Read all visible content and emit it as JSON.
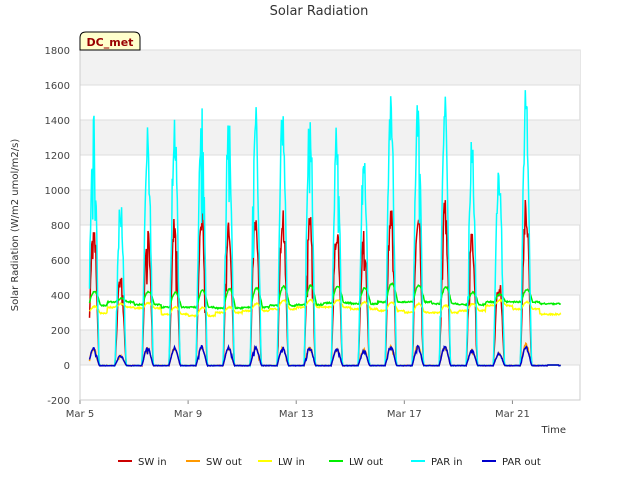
{
  "chart_data": {
    "type": "line",
    "title": "Solar Radiation",
    "xlabel": "Time",
    "ylabel": "Solar Radiation (W/m2 umol/m2/s)",
    "ylim": [
      -200,
      1800
    ],
    "yticks": [
      -200,
      0,
      200,
      400,
      600,
      800,
      1000,
      1200,
      1400,
      1600,
      1800
    ],
    "xlim_days": [
      5,
      23.5
    ],
    "xticks": [
      {
        "day": 5,
        "label": "Mar 5"
      },
      {
        "day": 9,
        "label": "Mar 9"
      },
      {
        "day": 13,
        "label": "Mar 13"
      },
      {
        "day": 17,
        "label": "Mar 17"
      },
      {
        "day": 21,
        "label": "Mar 21"
      }
    ],
    "badge": "DC_met",
    "grid": true,
    "legend_position": "bottom",
    "days": [
      5.5,
      6.5,
      7.5,
      8.5,
      9.5,
      10.5,
      11.5,
      12.5,
      13.5,
      14.5,
      15.5,
      16.5,
      17.5,
      18.5,
      19.5,
      20.5,
      21.5,
      22.5
    ],
    "series": [
      {
        "name": "SW in",
        "color": "#cc0000",
        "kind": "diurnal",
        "peaks": [
          880,
          550,
          860,
          870,
          910,
          890,
          905,
          905,
          905,
          840,
          770,
          940,
          965,
          955,
          775,
          520,
          970,
          0
        ]
      },
      {
        "name": "SW out",
        "color": "#ff9900",
        "kind": "diurnal",
        "peaks": [
          100,
          55,
          105,
          105,
          110,
          105,
          105,
          105,
          105,
          95,
          95,
          115,
          115,
          110,
          90,
          70,
          125,
          0
        ]
      },
      {
        "name": "LW in",
        "color": "#ffff00",
        "kind": "base",
        "base": [
          295,
          330,
          325,
          290,
          280,
          300,
          310,
          320,
          330,
          330,
          320,
          310,
          300,
          300,
          310,
          340,
          320,
          290
        ],
        "bump": [
          40,
          20,
          30,
          40,
          50,
          30,
          40,
          50,
          40,
          40,
          40,
          50,
          50,
          40,
          40,
          30,
          40,
          0
        ]
      },
      {
        "name": "LW out",
        "color": "#00ee00",
        "kind": "base",
        "base": [
          340,
          360,
          345,
          330,
          330,
          325,
          330,
          340,
          345,
          355,
          350,
          360,
          360,
          350,
          345,
          360,
          360,
          350
        ],
        "bump": [
          80,
          20,
          75,
          85,
          95,
          110,
          110,
          110,
          110,
          95,
          90,
          105,
          95,
          95,
          70,
          45,
          70,
          0
        ]
      },
      {
        "name": "PAR in",
        "color": "#00ffff",
        "kind": "diurnal",
        "peaks": [
          1450,
          960,
          1440,
          1450,
          1495,
          1465,
          1500,
          1520,
          1520,
          1400,
          1300,
          1560,
          1585,
          1590,
          1335,
          1170,
          1650,
          0
        ]
      },
      {
        "name": "PAR out",
        "color": "#0000cc",
        "kind": "diurnal",
        "peaks": [
          100,
          55,
          105,
          105,
          110,
          105,
          105,
          105,
          105,
          95,
          85,
          110,
          110,
          110,
          90,
          70,
          110,
          0
        ]
      }
    ]
  }
}
